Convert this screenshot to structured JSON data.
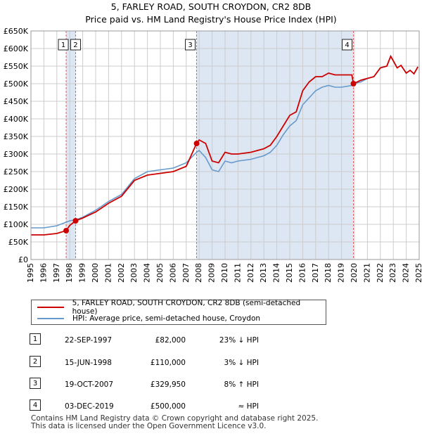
{
  "header": {
    "title_line1": "5, FARLEY ROAD, SOUTH CROYDON, CR2 8DB",
    "title_line2": "Price paid vs. HM Land Registry's House Price Index (HPI)"
  },
  "colors": {
    "price": "#cc0000",
    "hpi": "#6699cc",
    "shade": "#dde6f3",
    "vline": "#e06060",
    "grid": "#cccccc"
  },
  "chart_data": {
    "type": "line",
    "title": "Price paid vs. HM Land Registry's House Price Index (HPI)",
    "xlabel": "",
    "ylabel": "",
    "xlim": [
      1995,
      2025
    ],
    "ylim": [
      0,
      650000
    ],
    "x_ticks": [
      "1995",
      "1996",
      "1997",
      "1998",
      "1999",
      "2000",
      "2001",
      "2002",
      "2003",
      "2004",
      "2005",
      "2006",
      "2007",
      "2008",
      "2009",
      "2010",
      "2011",
      "2012",
      "2013",
      "2014",
      "2015",
      "2016",
      "2017",
      "2018",
      "2019",
      "2020",
      "2021",
      "2022",
      "2023",
      "2024",
      "2025"
    ],
    "y_ticks": [
      {
        "value": 0,
        "label": "£0"
      },
      {
        "value": 50000,
        "label": "£50K"
      },
      {
        "value": 100000,
        "label": "£100K"
      },
      {
        "value": 150000,
        "label": "£150K"
      },
      {
        "value": 200000,
        "label": "£200K"
      },
      {
        "value": 250000,
        "label": "£250K"
      },
      {
        "value": 300000,
        "label": "£300K"
      },
      {
        "value": 350000,
        "label": "£350K"
      },
      {
        "value": 400000,
        "label": "£400K"
      },
      {
        "value": 450000,
        "label": "£450K"
      },
      {
        "value": 500000,
        "label": "£500K"
      },
      {
        "value": 550000,
        "label": "£550K"
      },
      {
        "value": 600000,
        "label": "£600K"
      },
      {
        "value": 650000,
        "label": "£650K"
      }
    ],
    "series": [
      {
        "name": "5, FARLEY ROAD, SOUTH CROYDON, CR2 8DB (semi-detached house)",
        "x": [
          1995.0,
          1996.0,
          1997.0,
          1997.72,
          1998.0,
          1998.45,
          1999.0,
          2000.0,
          2001.0,
          2002.0,
          2003.0,
          2004.0,
          2005.0,
          2006.0,
          2007.0,
          2007.8,
          2008.0,
          2008.5,
          2009.0,
          2009.5,
          2010.0,
          2010.5,
          2011.0,
          2012.0,
          2013.0,
          2013.5,
          2014.0,
          2014.5,
          2015.0,
          2015.5,
          2016.0,
          2016.5,
          2017.0,
          2017.5,
          2018.0,
          2018.5,
          2019.0,
          2019.8,
          2019.92,
          2020.5,
          2021.0,
          2021.5,
          2022.0,
          2022.5,
          2022.8,
          2023.0,
          2023.3,
          2023.6,
          2024.0,
          2024.3,
          2024.6,
          2024.9
        ],
        "values": [
          70000,
          70000,
          74000,
          82000,
          97000,
          110000,
          118000,
          135000,
          160000,
          180000,
          225000,
          240000,
          245000,
          250000,
          265000,
          329950,
          340000,
          330000,
          280000,
          275000,
          305000,
          300000,
          300000,
          305000,
          315000,
          325000,
          350000,
          380000,
          410000,
          420000,
          480000,
          505000,
          520000,
          520000,
          530000,
          525000,
          525000,
          525000,
          500000,
          510000,
          515000,
          520000,
          545000,
          550000,
          578000,
          565000,
          545000,
          552000,
          530000,
          538000,
          528000,
          548000
        ]
      },
      {
        "name": "HPI: Average price, semi-detached house, Croydon",
        "x": [
          1995.0,
          1996.0,
          1997.0,
          1997.72,
          1998.0,
          1998.45,
          1999.0,
          2000.0,
          2001.0,
          2002.0,
          2003.0,
          2004.0,
          2005.0,
          2006.0,
          2007.0,
          2007.8,
          2008.0,
          2008.5,
          2009.0,
          2009.5,
          2010.0,
          2010.5,
          2011.0,
          2012.0,
          2013.0,
          2013.5,
          2014.0,
          2014.5,
          2015.0,
          2015.5,
          2016.0,
          2016.5,
          2017.0,
          2017.5,
          2018.0,
          2018.5,
          2019.0,
          2019.8,
          2019.92,
          2020.5,
          2021.0,
          2021.5,
          2022.0,
          2022.5,
          2022.8,
          2023.0,
          2023.3,
          2023.6,
          2024.0,
          2024.3,
          2024.6,
          2024.9
        ],
        "values": [
          90000,
          90000,
          96000,
          106000,
          110000,
          113000,
          120000,
          140000,
          165000,
          185000,
          230000,
          250000,
          255000,
          260000,
          275000,
          305000,
          310000,
          290000,
          255000,
          250000,
          280000,
          275000,
          280000,
          285000,
          295000,
          305000,
          325000,
          355000,
          380000,
          395000,
          440000,
          460000,
          480000,
          490000,
          495000,
          490000,
          490000,
          495000,
          500000,
          505000,
          515000,
          520000,
          545000,
          550000,
          578000,
          565000,
          545000,
          552000,
          530000,
          538000,
          528000,
          548000
        ]
      }
    ],
    "transactions": [
      {
        "id": "1",
        "x": 1997.72,
        "price": 82000
      },
      {
        "id": "2",
        "x": 1998.45,
        "price": 110000
      },
      {
        "id": "3",
        "x": 2007.8,
        "price": 329950
      },
      {
        "id": "4",
        "x": 2019.92,
        "price": 500000
      }
    ],
    "shaded_regions": [
      [
        1997.72,
        1998.45
      ],
      [
        2007.8,
        2019.92
      ]
    ]
  },
  "legend": {
    "price_label": "5, FARLEY ROAD, SOUTH CROYDON, CR2 8DB (semi-detached house)",
    "hpi_label": "HPI: Average price, semi-detached house, Croydon"
  },
  "table": [
    {
      "id": "1",
      "date": "22-SEP-1997",
      "price": "£82,000",
      "hpi": "23% ↓ HPI"
    },
    {
      "id": "2",
      "date": "15-JUN-1998",
      "price": "£110,000",
      "hpi": "3% ↓ HPI"
    },
    {
      "id": "3",
      "date": "19-OCT-2007",
      "price": "£329,950",
      "hpi": "8% ↑ HPI"
    },
    {
      "id": "4",
      "date": "03-DEC-2019",
      "price": "£500,000",
      "hpi": "≈ HPI"
    }
  ],
  "footer": {
    "line1": "Contains HM Land Registry data © Crown copyright and database right 2025.",
    "line2": "This data is licensed under the Open Government Licence v3.0."
  }
}
